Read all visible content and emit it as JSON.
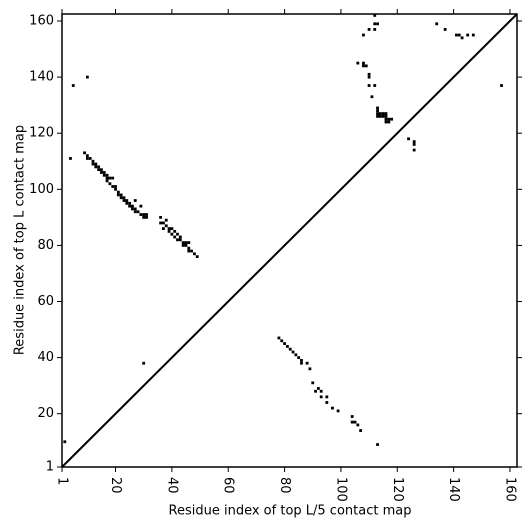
{
  "chart_data": {
    "type": "scatter",
    "xlabel": "Residue index of top L/5 contact map",
    "ylabel": "Residue index of top L contact map",
    "xlim": [
      1,
      162.5
    ],
    "ylim": [
      1,
      162.5
    ],
    "xticks": [
      1,
      20,
      40,
      60,
      80,
      100,
      120,
      140,
      160
    ],
    "yticks": [
      1,
      20,
      40,
      60,
      80,
      100,
      120,
      140,
      160
    ],
    "diagonal": true,
    "series": [
      {
        "color": "#000000",
        "x": [
          5,
          10,
          4,
          2,
          9,
          10,
          10,
          11,
          12,
          12,
          13,
          13,
          14,
          14,
          15,
          15,
          16,
          16,
          17,
          17,
          17,
          18,
          18,
          19,
          19,
          20,
          20,
          21,
          21,
          22,
          22,
          23,
          23,
          24,
          24,
          25,
          25,
          26,
          26,
          27,
          27,
          27,
          28,
          29,
          29,
          30,
          30,
          31,
          31,
          36,
          36,
          37,
          37,
          38,
          38,
          39,
          39,
          40,
          40,
          41,
          41,
          42,
          42,
          43,
          43,
          44,
          44,
          45,
          45,
          46,
          46,
          46,
          47,
          48,
          49,
          30,
          106,
          108,
          108,
          108,
          109,
          110,
          110,
          110,
          110,
          111,
          112,
          112,
          112,
          113,
          112,
          113,
          113,
          113,
          113,
          114,
          114,
          115,
          115,
          116,
          116,
          116,
          116,
          117,
          117,
          118,
          124,
          126,
          126,
          126,
          134,
          137,
          141,
          142,
          143,
          145,
          147,
          157
        ],
        "y": [
          137,
          140,
          111,
          10,
          113,
          112,
          111,
          111,
          110,
          109,
          109,
          108,
          108,
          107,
          107,
          106,
          106,
          105,
          105,
          104,
          103,
          104,
          102,
          104,
          101,
          101,
          100,
          99,
          98,
          98,
          97,
          97,
          96,
          96,
          95,
          95,
          94,
          94,
          93,
          96,
          93,
          92,
          92,
          94,
          91,
          90,
          91,
          91,
          90,
          90,
          88,
          88,
          86,
          89,
          87,
          86,
          85,
          86,
          84,
          85,
          83,
          84,
          82,
          83,
          82,
          81,
          80,
          81,
          80,
          81,
          79,
          78,
          78,
          77,
          76,
          38,
          145,
          155,
          145,
          144,
          144,
          157,
          141,
          140,
          137,
          133,
          157,
          159,
          162,
          159,
          137,
          129,
          128,
          127,
          126,
          127,
          126,
          127,
          126,
          127,
          126,
          125,
          124,
          125,
          124,
          125,
          118,
          117,
          116,
          114,
          159,
          157,
          155,
          155,
          154,
          155,
          155,
          137
        ]
      },
      {
        "color": "#000000",
        "x": [
          78,
          79,
          80,
          81,
          82,
          83,
          84,
          85,
          86,
          86,
          88,
          89,
          90,
          91,
          92,
          93,
          93,
          95,
          95,
          97,
          99,
          104,
          104,
          105,
          106,
          107,
          113
        ],
        "y": [
          47,
          46,
          45,
          44,
          43,
          42,
          41,
          40,
          39,
          38,
          38,
          36,
          31,
          28,
          29,
          28,
          26,
          26,
          24,
          22,
          21,
          19,
          17,
          17,
          16,
          14,
          9
        ]
      }
    ]
  }
}
